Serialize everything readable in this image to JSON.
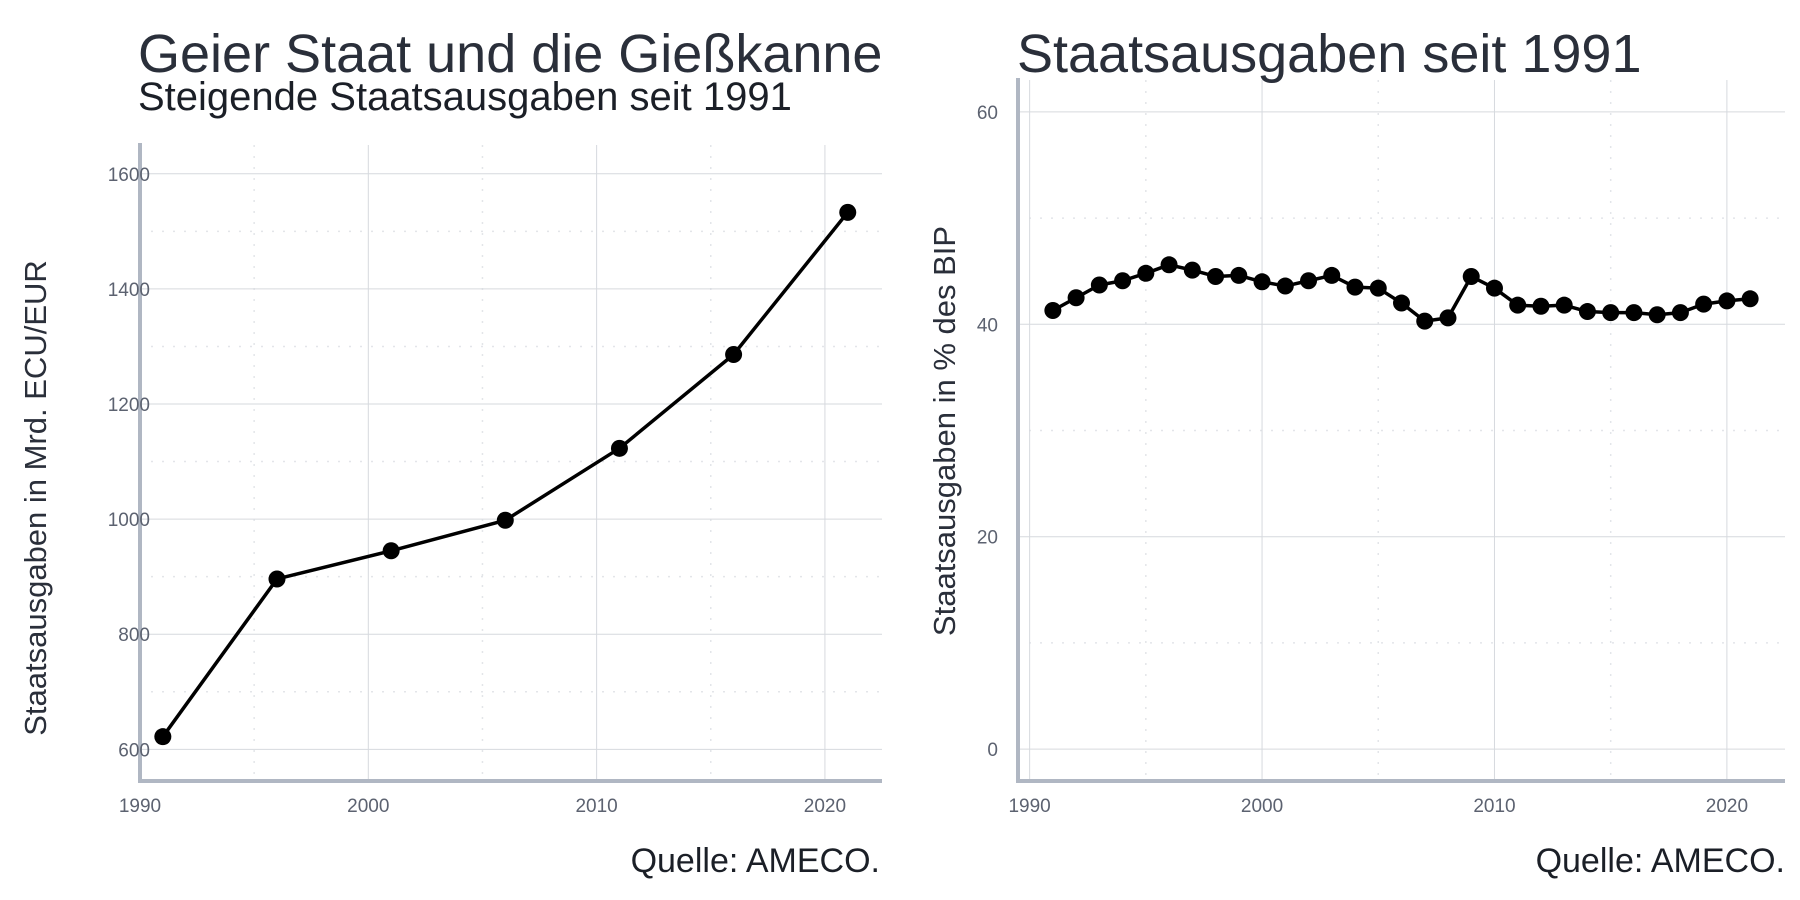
{
  "chart_data": [
    {
      "type": "line",
      "title": "Geier Staat und die Gießkanne",
      "subtitle": "Steigende Staatsausgaben seit 1991",
      "xlabel": "",
      "ylabel": "Staatsausgaben in Mrd. ECU/EUR",
      "caption": "Quelle: AMECO.",
      "xlim": [
        1990,
        2022.5
      ],
      "ylim": [
        545,
        1650
      ],
      "x_major_ticks": [
        1990,
        2000,
        2010,
        2020
      ],
      "x_tick_labels": [
        "1990",
        "2000",
        "2010",
        "2020"
      ],
      "x_minor_ticks": [
        1995,
        2005,
        2015
      ],
      "y_major_ticks": [
        600,
        800,
        1000,
        1200,
        1400,
        1600
      ],
      "y_tick_labels": [
        "600",
        "800",
        "1000",
        "1200",
        "1400",
        "1600"
      ],
      "y_minor_ticks": [
        700,
        900,
        1100,
        1300,
        1500
      ],
      "grid": true,
      "legend": "none",
      "series": [
        {
          "x": [
            1991,
            1996,
            2001,
            2006,
            2011,
            2016,
            2021
          ],
          "values": [
            622,
            896,
            945,
            998,
            1123,
            1286,
            1533
          ]
        }
      ]
    },
    {
      "type": "line",
      "title": "Staatsausgaben seit 1991",
      "subtitle": "",
      "xlabel": "",
      "ylabel": "Staatsausgaben in % des BIP",
      "caption": "Quelle: AMECO.",
      "xlim": [
        1989.5,
        2022.5
      ],
      "ylim": [
        -3,
        63
      ],
      "x_major_ticks": [
        1990,
        2000,
        2010,
        2020
      ],
      "x_tick_labels": [
        "1990",
        "2000",
        "2010",
        "2020"
      ],
      "x_minor_ticks": [
        1995,
        2005,
        2015
      ],
      "y_major_ticks": [
        0,
        20,
        40,
        60
      ],
      "y_tick_labels": [
        "0",
        "20",
        "40",
        "60"
      ],
      "y_minor_ticks": [
        10,
        30,
        50
      ],
      "grid": true,
      "legend": "none",
      "series": [
        {
          "x": [
            1991,
            1992,
            1993,
            1994,
            1995,
            1996,
            1997,
            1998,
            1999,
            2000,
            2001,
            2002,
            2003,
            2004,
            2005,
            2006,
            2007,
            2008,
            2009,
            2010,
            2011,
            2012,
            2013,
            2014,
            2015,
            2016,
            2017,
            2018,
            2019,
            2020,
            2021
          ],
          "values": [
            41.3,
            42.5,
            43.7,
            44.1,
            44.8,
            45.6,
            45.1,
            44.5,
            44.6,
            44.0,
            43.6,
            44.1,
            44.6,
            43.5,
            43.4,
            42.0,
            40.3,
            40.6,
            44.5,
            43.4,
            41.8,
            41.7,
            41.8,
            41.2,
            41.1,
            41.1,
            40.9,
            41.1,
            41.9,
            42.2,
            42.4
          ]
        }
      ]
    }
  ]
}
